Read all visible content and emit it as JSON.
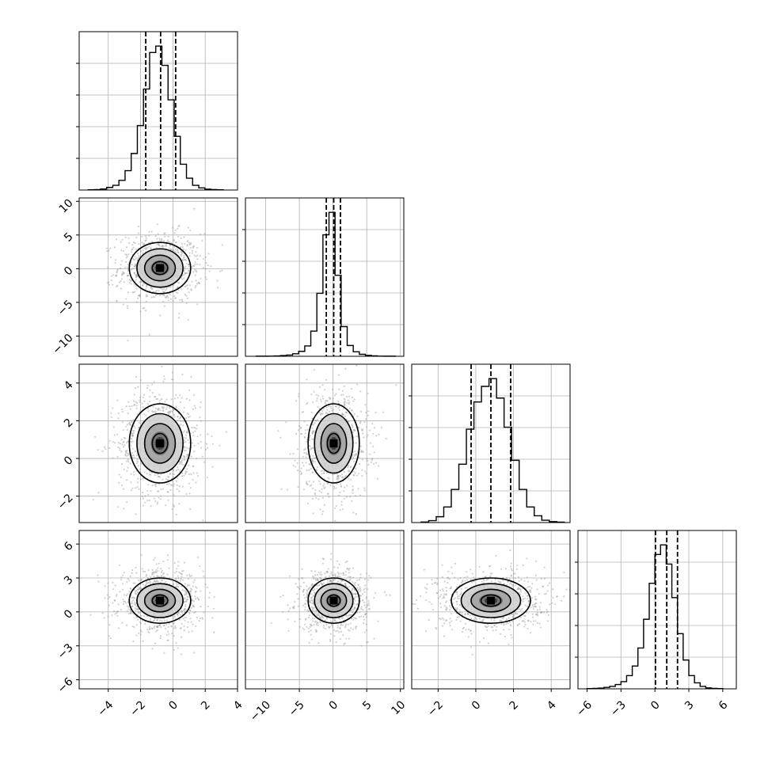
{
  "chart_data": {
    "type": "corner",
    "title": "",
    "grid": true,
    "dimensions": [
      {
        "name": "",
        "xlim": [
          -5.8,
          4.0
        ],
        "ticks": [
          -4,
          -2,
          0,
          2,
          4
        ],
        "tick_labels": [
          "−4",
          "−2",
          "0",
          "2",
          "4"
        ],
        "center": -0.8,
        "sigma": 0.95,
        "quantiles": [
          -1.68,
          -0.76,
          0.17
        ]
      },
      {
        "name": "",
        "xlim": [
          -13.0,
          10.5
        ],
        "ticks": [
          -10,
          -5,
          0,
          5,
          10
        ],
        "tick_labels": [
          "−10",
          "−5",
          "0",
          "5",
          "10"
        ],
        "center": 0.1,
        "sigma": 1.9,
        "quantiles": [
          -1.0,
          0.1,
          1.1
        ]
      },
      {
        "name": "",
        "xlim": [
          -3.4,
          5.0
        ],
        "ticks": [
          -2,
          0,
          2,
          4
        ],
        "tick_labels": [
          "−2",
          "0",
          "2",
          "4"
        ],
        "center": 0.8,
        "sigma": 1.05,
        "quantiles": [
          -0.25,
          0.8,
          1.85
        ]
      },
      {
        "name": "",
        "xlim": [
          -6.8,
          7.2
        ],
        "ticks": [
          -6,
          -3,
          0,
          3,
          6
        ],
        "tick_labels": [
          "−6",
          "−3",
          "0",
          "3",
          "6"
        ],
        "center": 1.0,
        "sigma": 1.0,
        "quantiles": [
          0.05,
          1.05,
          2.0
        ]
      }
    ],
    "histograms": [
      {
        "bins": [
          -5.24,
          -4.86,
          -4.48,
          -4.1,
          -3.72,
          -3.34,
          -2.96,
          -2.58,
          -2.2,
          -1.82,
          -1.44,
          -1.06,
          -0.68,
          -0.3,
          0.08,
          0.46,
          0.84,
          1.22,
          1.6,
          1.98,
          2.36,
          2.74,
          3.12
        ],
        "counts": [
          1,
          2,
          5,
          12,
          22,
          45,
          90,
          170,
          300,
          470,
          640,
          670,
          580,
          420,
          250,
          120,
          55,
          22,
          10,
          4,
          2,
          1
        ]
      },
      {
        "bins": [
          -11.4,
          -10.5,
          -9.6,
          -8.7,
          -7.8,
          -6.9,
          -6.0,
          -5.1,
          -4.2,
          -3.3,
          -2.4,
          -1.5,
          -0.6,
          0.3,
          1.2,
          2.1,
          3.0,
          3.9,
          4.8,
          5.7,
          6.6,
          7.5,
          8.4,
          9.3
        ],
        "counts": [
          1,
          1,
          2,
          4,
          8,
          14,
          28,
          55,
          115,
          280,
          700,
          1350,
          1600,
          900,
          330,
          120,
          50,
          22,
          10,
          5,
          2,
          1,
          1
        ]
      },
      {
        "bins": [
          -2.9,
          -2.5,
          -2.1,
          -1.7,
          -1.3,
          -0.9,
          -0.5,
          -0.1,
          0.3,
          0.7,
          1.1,
          1.5,
          1.9,
          2.3,
          2.7,
          3.1,
          3.5,
          3.9,
          4.3,
          4.7
        ],
        "counts": [
          3,
          10,
          30,
          80,
          170,
          300,
          480,
          620,
          700,
          740,
          640,
          490,
          320,
          170,
          80,
          35,
          12,
          5,
          2
        ]
      },
      {
        "bins": [
          -6.0,
          -5.5,
          -5.0,
          -4.5,
          -4.0,
          -3.5,
          -3.0,
          -2.5,
          -2.0,
          -1.5,
          -1.0,
          -0.5,
          0.0,
          0.5,
          1.0,
          1.5,
          2.0,
          2.5,
          3.0,
          3.5,
          4.0,
          4.5,
          5.0,
          5.5,
          6.0
        ],
        "counts": [
          1,
          2,
          3,
          6,
          10,
          18,
          30,
          55,
          95,
          170,
          290,
          440,
          560,
          600,
          520,
          380,
          230,
          120,
          55,
          25,
          10,
          4,
          2,
          1
        ]
      }
    ],
    "pairs": [
      {
        "x": 0,
        "y": 1,
        "rx": 0.95,
        "ry": 1.9
      },
      {
        "x": 0,
        "y": 2,
        "rx": 0.95,
        "ry": 1.05
      },
      {
        "x": 1,
        "y": 2,
        "rx": 1.9,
        "ry": 1.05
      },
      {
        "x": 0,
        "y": 3,
        "rx": 0.95,
        "ry": 1.0
      },
      {
        "x": 1,
        "y": 3,
        "rx": 1.9,
        "ry": 1.0
      },
      {
        "x": 2,
        "y": 3,
        "rx": 1.05,
        "ry": 1.0
      }
    ],
    "contour_levels_sigma": [
      0.5,
      1.0,
      1.5,
      2.0
    ]
  }
}
